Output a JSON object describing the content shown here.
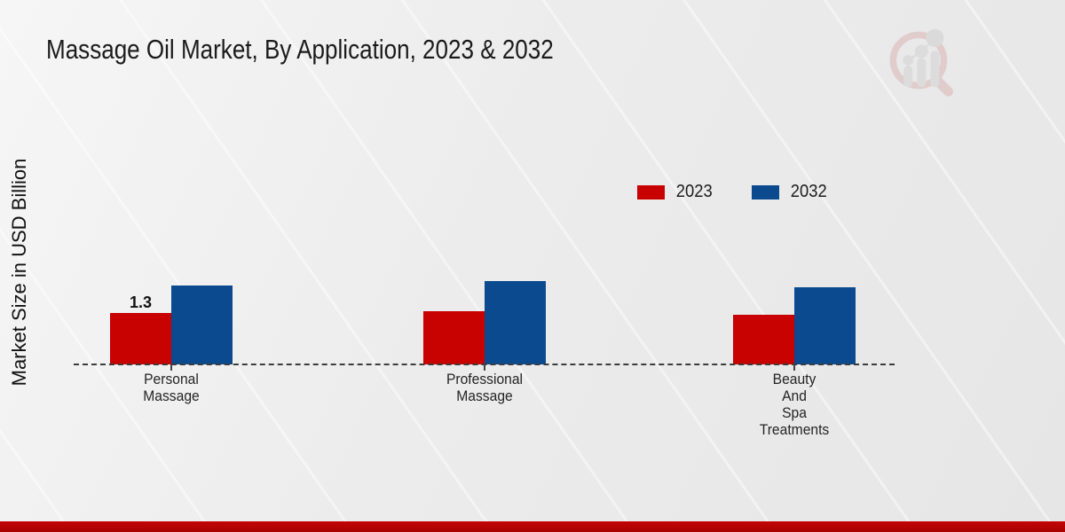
{
  "header": {
    "title": "Massage Oil Market, By Application, 2023 & 2032",
    "logo": "market-research-future-watermark"
  },
  "y_axis": {
    "label": "Market Size in USD Billion"
  },
  "legend": {
    "items": [
      {
        "label": "2023",
        "color": "#c80101"
      },
      {
        "label": "2032",
        "color": "#0b4a8f"
      }
    ]
  },
  "chart_data": {
    "type": "bar",
    "title": "Massage Oil Market, By Application, 2023 & 2032",
    "xlabel": "",
    "ylabel": "Market Size in USD Billion",
    "categories": [
      "Personal Massage",
      "Professional Massage",
      "Beauty And Spa Treatments"
    ],
    "category_label_lines": [
      [
        "Personal",
        "Massage"
      ],
      [
        "Professional",
        "Massage"
      ],
      [
        "Beauty",
        "And",
        "Spa",
        "Treatments"
      ]
    ],
    "series": [
      {
        "name": "2023",
        "color": "#c80101",
        "values": [
          1.3,
          1.35,
          1.25
        ]
      },
      {
        "name": "2032",
        "color": "#0b4a8f",
        "values": [
          2.0,
          2.1,
          1.95
        ]
      }
    ],
    "data_labels": [
      {
        "series": "2023",
        "category": "Personal Massage",
        "text": "1.3"
      }
    ],
    "ylim": [
      0,
      2.5
    ],
    "grid": false,
    "legend_position": "top-right",
    "baseline_style": "dashed",
    "y_axis_ticks_visible": false
  },
  "footer": {
    "accent_bar_color": "#b30404"
  }
}
